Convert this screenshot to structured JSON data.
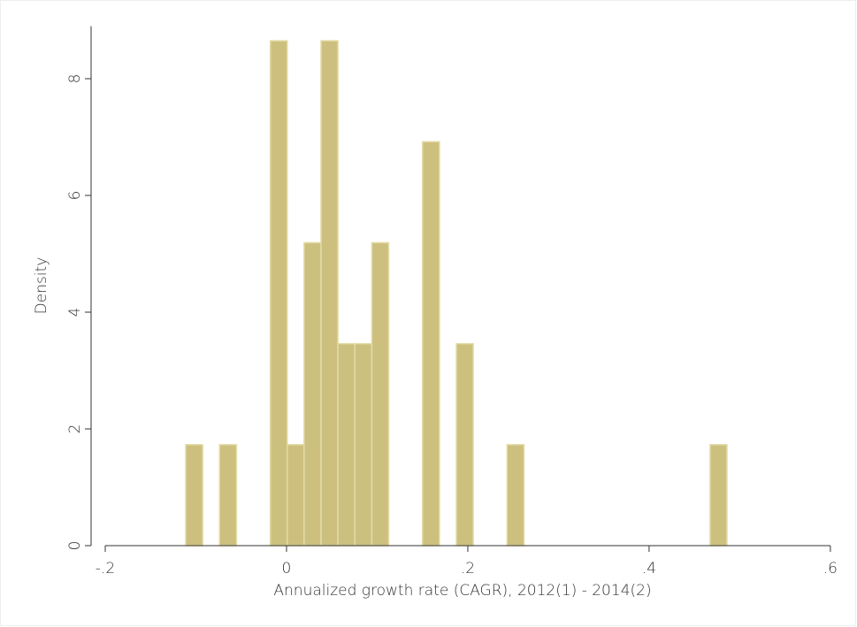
{
  "chart_data": {
    "type": "histogram",
    "x_label": "Annualized growth rate (CAGR), 2012(1) - 2014(2)",
    "y_label": "Density",
    "bins": [
      -0.1112,
      -0.0925,
      -0.0739,
      -0.0552,
      -0.0366,
      -0.0179,
      0.0008,
      0.0194,
      0.0381,
      0.0567,
      0.0754,
      0.0941,
      0.1127,
      0.1314,
      0.15,
      0.1687,
      0.1874,
      0.206,
      0.2247,
      0.2433,
      0.262,
      0.2807,
      0.2993,
      0.318,
      0.3366,
      0.3553,
      0.374,
      0.3926,
      0.4113,
      0.4299,
      0.4486,
      0.4673,
      0.4859
    ],
    "values": [
      1.73,
      0,
      1.73,
      0,
      0,
      8.65,
      1.73,
      5.19,
      8.65,
      3.46,
      3.46,
      5.19,
      0,
      0,
      6.92,
      0,
      3.46,
      0,
      0,
      1.73,
      0,
      0,
      0,
      0,
      0,
      0,
      0,
      0,
      0,
      0,
      0,
      1.73
    ],
    "color": "#cdc07f",
    "edge_color": "#e3dba6",
    "xlim": [
      -0.2156,
      0.604
    ],
    "ylim": [
      0,
      8.9
    ],
    "xticks": [
      {
        "value": -0.2,
        "label": "-.2"
      },
      0,
      {
        "value": 0.2,
        "label": ".2"
      },
      {
        "value": 0.4,
        "label": ".4"
      },
      {
        "value": 0.6,
        "label": ".6"
      }
    ],
    "yticks": [
      0,
      2,
      4,
      6,
      8
    ],
    "grid": false
  }
}
